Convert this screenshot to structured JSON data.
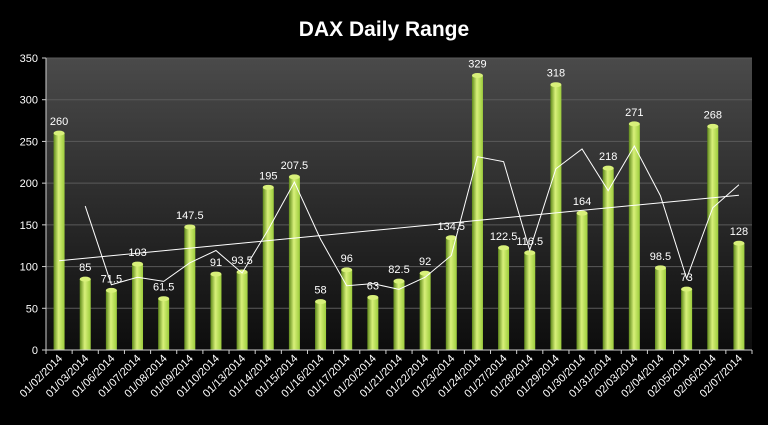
{
  "chart_data": {
    "type": "bar",
    "title": "DAX Daily Range",
    "xlabel": "",
    "ylabel": "",
    "ylim": [
      0,
      350
    ],
    "yticks": [
      0,
      50,
      100,
      150,
      200,
      250,
      300,
      350
    ],
    "grid": true,
    "legend": "none",
    "categories": [
      "01/02/2014",
      "01/03/2014",
      "01/06/2014",
      "01/07/2014",
      "01/08/2014",
      "01/09/2014",
      "01/10/2014",
      "01/13/2014",
      "01/14/2014",
      "01/15/2014",
      "01/16/2014",
      "01/17/2014",
      "01/20/2014",
      "01/21/2014",
      "01/22/2014",
      "01/23/2014",
      "01/24/2014",
      "01/27/2014",
      "01/28/2014",
      "01/29/2014",
      "01/30/2014",
      "01/31/2014",
      "02/03/2014",
      "02/04/2014",
      "02/05/2014",
      "02/06/2014",
      "02/07/2014"
    ],
    "series": [
      {
        "values": [
          260,
          85,
          71.5,
          103,
          61.5,
          147.5,
          91,
          93.5,
          195,
          207.5,
          58,
          96,
          63,
          82.5,
          92,
          134.5,
          329,
          122.5,
          116.5,
          318,
          164,
          218,
          271,
          98.5,
          73,
          268,
          128
        ],
        "labels": [
          "260",
          "85",
          "71.5",
          "103",
          "61.5",
          "147.5",
          "91",
          "93.5",
          "195",
          "207.5",
          "58",
          "96",
          "63",
          "82.5",
          "92",
          "134.5",
          "329",
          "122.5",
          "116.5",
          "318",
          "164",
          "218",
          "271",
          "98.5",
          "73",
          "268",
          "128"
        ]
      }
    ],
    "overlays": [
      {
        "type": "moving-average",
        "period": 2,
        "color": "#ffffff"
      },
      {
        "type": "linear-trendline",
        "color": "#ffffff"
      }
    ],
    "colors": {
      "bar_light": "#d8f07a",
      "bar_mid": "#9ccc3c",
      "bar_dark": "#5f8a1a",
      "plot_top": "#4a4a4a",
      "plot_bottom": "#0d0d0d",
      "background": "#000000",
      "text": "#ffffff",
      "lines": "#ffffff"
    }
  }
}
